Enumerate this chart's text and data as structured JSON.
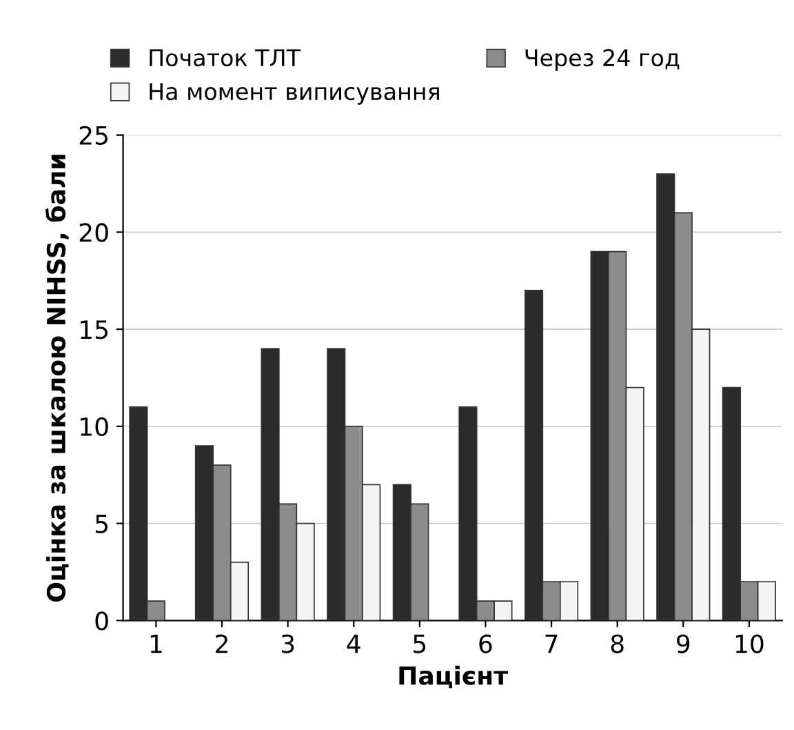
{
  "chart_data": {
    "type": "bar",
    "xlabel": "Пацієнт",
    "ylabel": "Оцінка за шкалою NIHSS, бали",
    "categories": [
      "1",
      "2",
      "3",
      "4",
      "5",
      "6",
      "7",
      "8",
      "9",
      "10"
    ],
    "series": [
      {
        "name": "Початок ТЛТ",
        "color": "#2b2b2b",
        "values": [
          11,
          9,
          14,
          14,
          7,
          11,
          17,
          19,
          23,
          12
        ]
      },
      {
        "name": "Через 24 год",
        "color": "#8c8c8c",
        "values": [
          1,
          8,
          6,
          10,
          6,
          1,
          2,
          19,
          21,
          2
        ]
      },
      {
        "name": "На момент виписування",
        "color": "#f4f4f4",
        "values": [
          null,
          3,
          5,
          7,
          null,
          1,
          2,
          12,
          15,
          2
        ]
      }
    ],
    "ylim": [
      0,
      25
    ],
    "yticks": [
      0,
      5,
      10,
      15,
      20,
      25
    ],
    "grid": "y",
    "legend": "top left"
  }
}
